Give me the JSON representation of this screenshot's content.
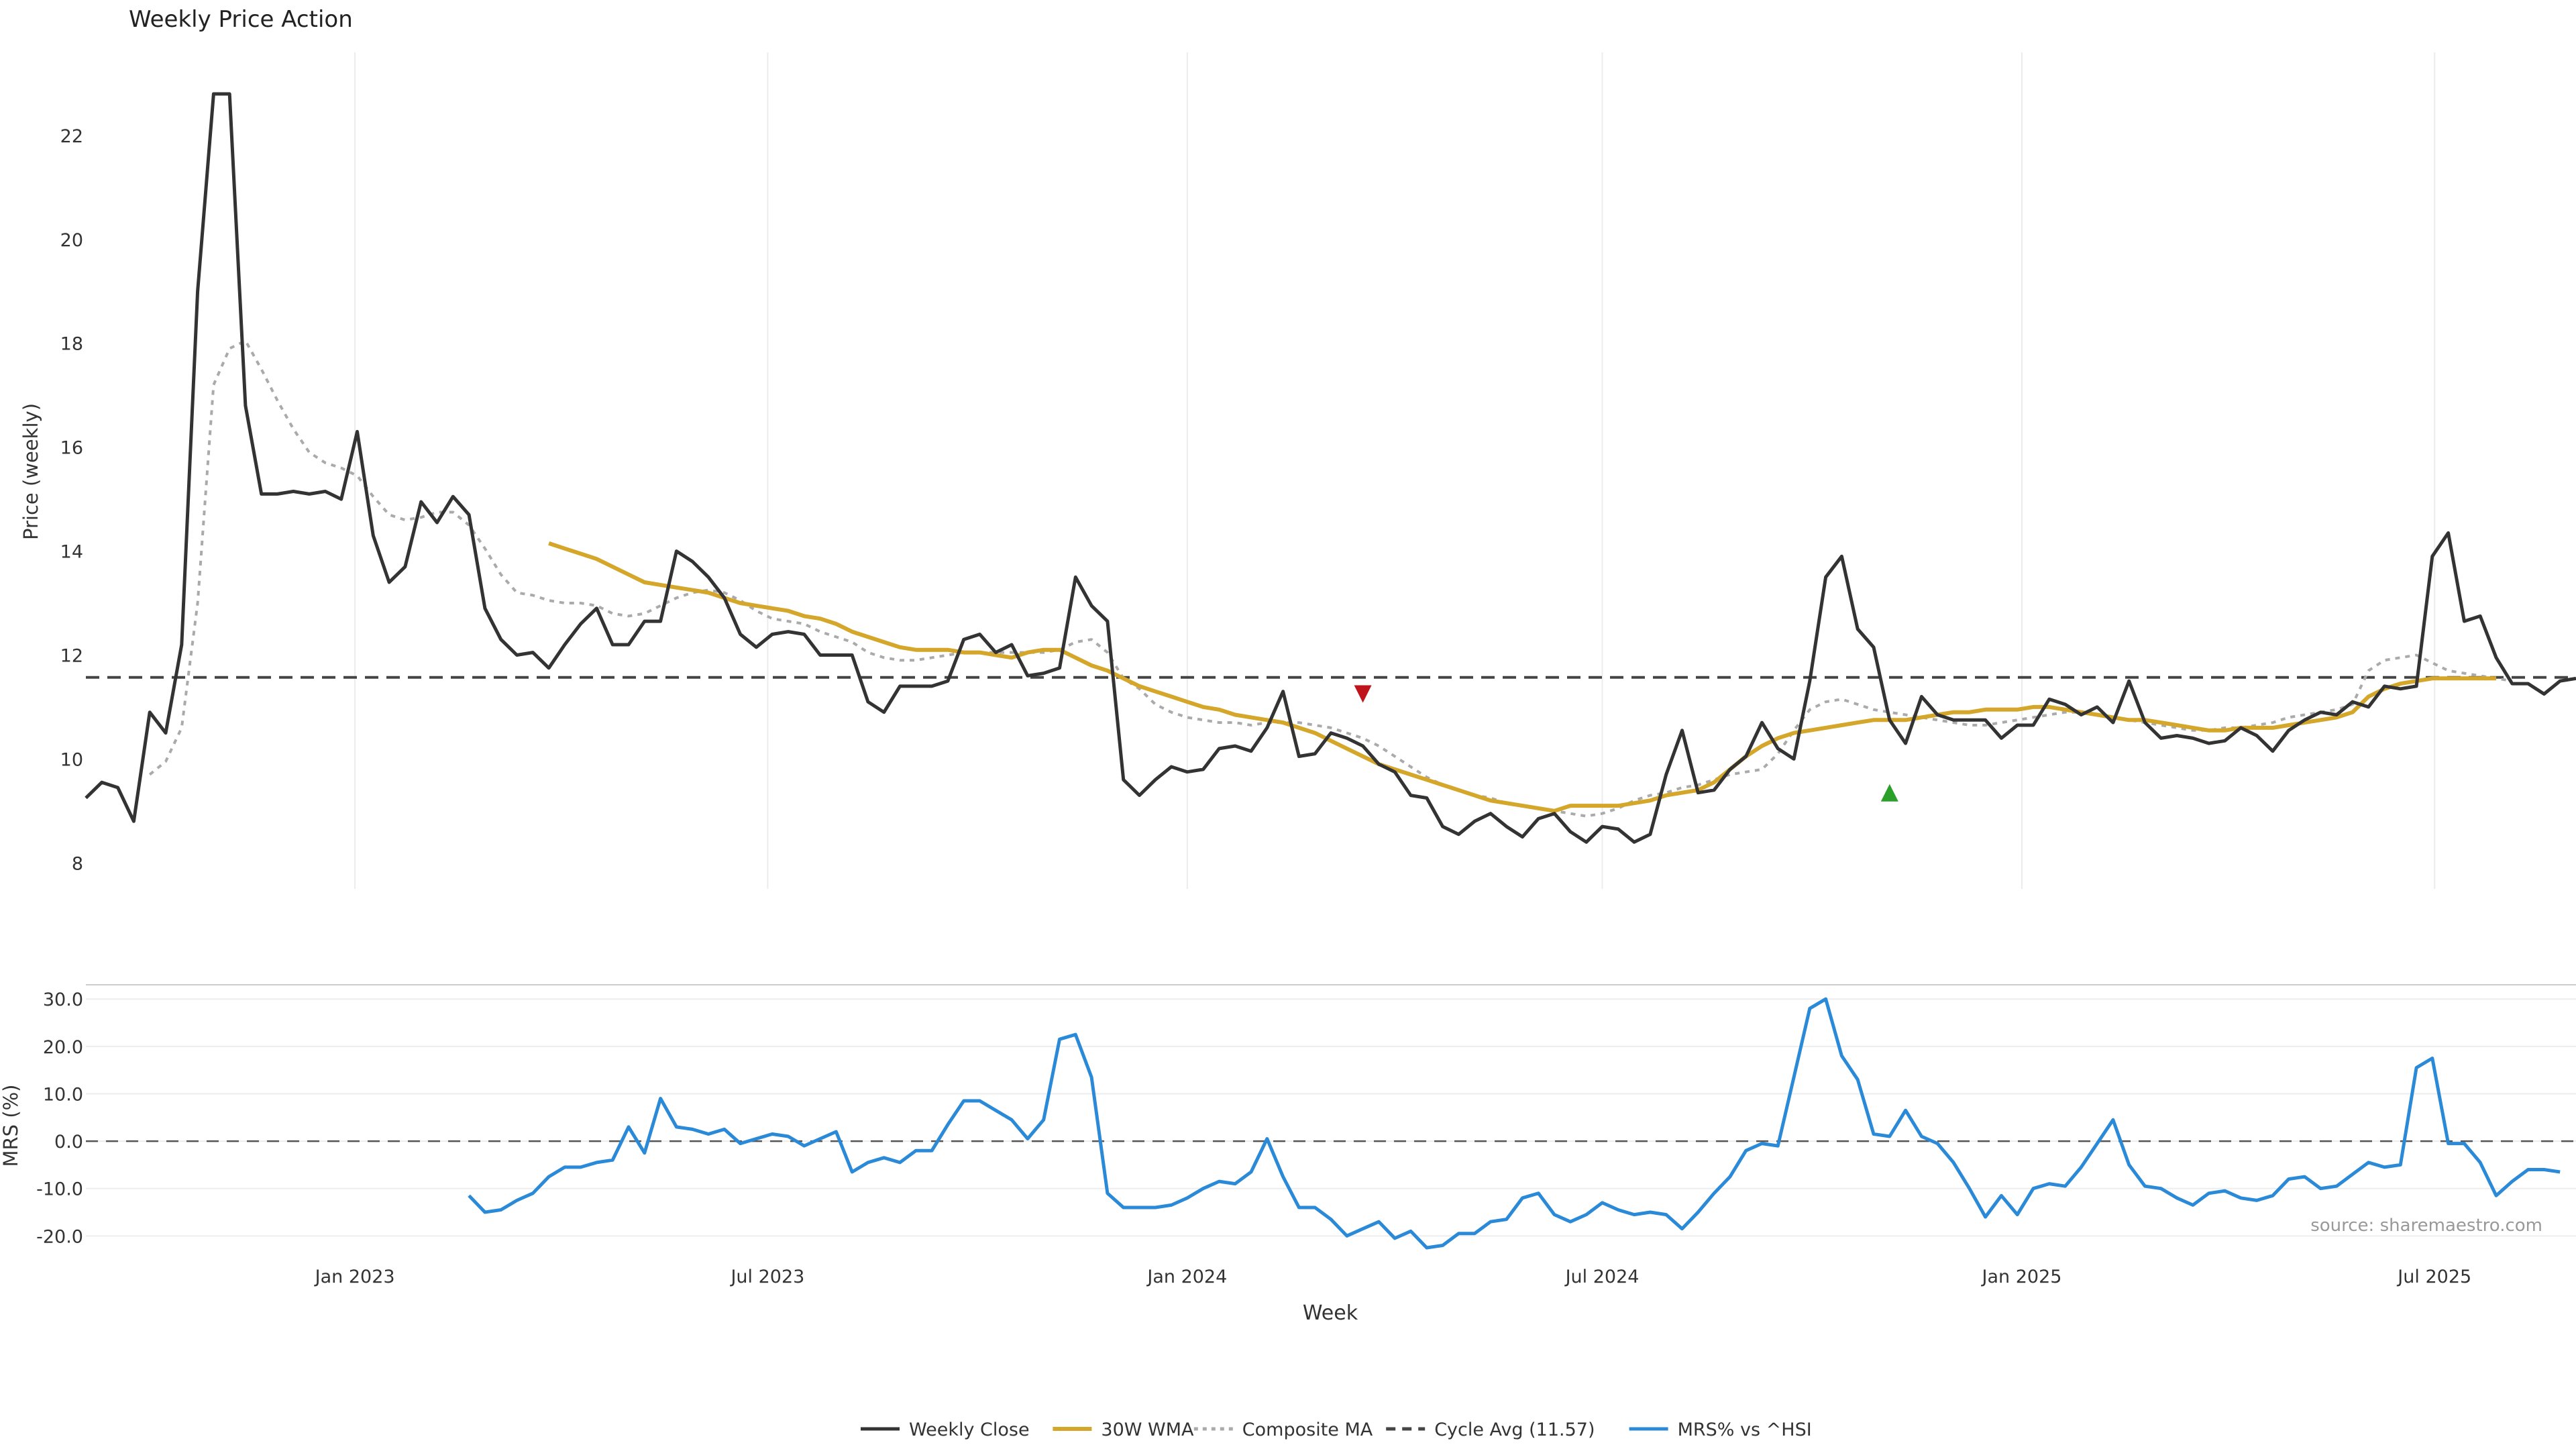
{
  "chart_data": [
    {
      "type": "line",
      "title": "Weekly Price Action",
      "ylabel": "Price (weekly)",
      "ylim": [
        7.5,
        23.6
      ],
      "yticks": [
        8,
        10,
        12,
        14,
        16,
        18,
        20,
        22
      ],
      "grid": "x",
      "x_start": "2022-09-05",
      "x_step_days": 7,
      "series": [
        {
          "name": "Weekly Close",
          "color": "#333333",
          "style": "solid",
          "values": [
            9.25,
            9.55,
            9.45,
            8.8,
            10.9,
            10.5,
            12.2,
            19.0,
            22.8,
            22.8,
            16.8,
            15.1,
            15.1,
            15.15,
            15.1,
            15.15,
            15.0,
            16.3,
            14.3,
            13.4,
            13.7,
            14.95,
            14.55,
            15.05,
            14.7,
            12.9,
            12.3,
            12.0,
            12.05,
            11.75,
            12.2,
            12.6,
            12.9,
            12.2,
            12.2,
            12.65,
            12.65,
            14.0,
            13.8,
            13.5,
            13.1,
            12.4,
            12.15,
            12.4,
            12.45,
            12.4,
            12.0,
            12.0,
            12.0,
            11.1,
            10.9,
            11.4,
            11.4,
            11.4,
            11.5,
            12.3,
            12.4,
            12.05,
            12.2,
            11.6,
            11.65,
            11.75,
            13.5,
            12.95,
            12.65,
            9.6,
            9.3,
            9.6,
            9.85,
            9.75,
            9.8,
            10.2,
            10.25,
            10.15,
            10.6,
            11.3,
            10.05,
            10.1,
            10.5,
            10.4,
            10.25,
            9.9,
            9.75,
            9.3,
            9.25,
            8.7,
            8.55,
            8.8,
            8.95,
            8.7,
            8.5,
            8.85,
            8.95,
            8.6,
            8.4,
            8.7,
            8.65,
            8.4,
            8.55,
            9.7,
            10.55,
            9.35,
            9.4,
            9.8,
            10.05,
            10.7,
            10.2,
            10.0,
            11.5,
            13.5,
            13.9,
            12.5,
            12.15,
            10.75,
            10.3,
            11.2,
            10.85,
            10.75,
            10.75,
            10.75,
            10.4,
            10.65,
            10.65,
            11.15,
            11.05,
            10.85,
            11.0,
            10.7,
            11.5,
            10.7,
            10.4,
            10.45,
            10.4,
            10.3,
            10.35,
            10.6,
            10.45,
            10.15,
            10.55,
            10.75,
            10.9,
            10.85,
            11.1,
            11.0,
            11.4,
            11.35,
            11.4,
            13.9,
            14.35,
            12.65,
            12.75,
            11.95,
            11.45,
            11.45,
            11.25,
            11.5,
            11.55
          ]
        },
        {
          "name": "30W WMA",
          "color": "#d4a62a",
          "style": "solid",
          "values": [
            null,
            null,
            null,
            null,
            null,
            null,
            null,
            null,
            null,
            null,
            null,
            null,
            null,
            null,
            null,
            null,
            null,
            null,
            null,
            null,
            null,
            null,
            null,
            null,
            null,
            null,
            null,
            null,
            null,
            14.15,
            14.05,
            13.95,
            13.85,
            13.7,
            13.55,
            13.4,
            13.35,
            13.3,
            13.25,
            13.2,
            13.1,
            13.0,
            12.95,
            12.9,
            12.85,
            12.75,
            12.7,
            12.6,
            12.45,
            12.35,
            12.25,
            12.15,
            12.1,
            12.1,
            12.1,
            12.05,
            12.05,
            12.0,
            11.95,
            12.05,
            12.1,
            12.1,
            11.95,
            11.8,
            11.7,
            11.55,
            11.4,
            11.3,
            11.2,
            11.1,
            11.0,
            10.95,
            10.85,
            10.8,
            10.75,
            10.7,
            10.6,
            10.5,
            10.35,
            10.2,
            10.05,
            9.9,
            9.8,
            9.7,
            9.6,
            9.5,
            9.4,
            9.3,
            9.2,
            9.15,
            9.1,
            9.05,
            9.0,
            9.1,
            9.1,
            9.1,
            9.1,
            9.15,
            9.2,
            9.3,
            9.35,
            9.4,
            9.55,
            9.8,
            10.05,
            10.25,
            10.4,
            10.5,
            10.55,
            10.6,
            10.65,
            10.7,
            10.75,
            10.75,
            10.75,
            10.8,
            10.85,
            10.9,
            10.9,
            10.95,
            10.95,
            10.95,
            11.0,
            11.0,
            10.95,
            10.9,
            10.85,
            10.8,
            10.75,
            10.75,
            10.7,
            10.65,
            10.6,
            10.55,
            10.55,
            10.6,
            10.6,
            10.6,
            10.65,
            10.7,
            10.75,
            10.8,
            10.9,
            11.2,
            11.35,
            11.45,
            11.5,
            11.55,
            11.55,
            11.55,
            11.55,
            11.55
          ]
        },
        {
          "name": "Composite MA",
          "color": "#aaaaaa",
          "style": "dotted",
          "values": [
            null,
            null,
            null,
            null,
            9.7,
            9.95,
            10.6,
            13.0,
            17.2,
            17.9,
            18.05,
            17.5,
            16.9,
            16.35,
            15.9,
            15.7,
            15.6,
            15.45,
            15.05,
            14.7,
            14.6,
            14.65,
            14.75,
            14.75,
            14.5,
            14.05,
            13.55,
            13.2,
            13.15,
            13.05,
            13.0,
            13.0,
            12.95,
            12.8,
            12.75,
            12.8,
            12.95,
            13.1,
            13.2,
            13.25,
            13.2,
            13.05,
            12.85,
            12.7,
            12.65,
            12.6,
            12.45,
            12.35,
            12.25,
            12.05,
            11.95,
            11.9,
            11.9,
            11.95,
            12.0,
            12.05,
            12.05,
            12.05,
            12.05,
            12.05,
            12.05,
            12.1,
            12.25,
            12.3,
            12.05,
            11.55,
            11.35,
            11.05,
            10.9,
            10.8,
            10.75,
            10.7,
            10.7,
            10.65,
            10.7,
            10.7,
            10.7,
            10.65,
            10.6,
            10.5,
            10.4,
            10.25,
            10.05,
            9.85,
            9.65,
            9.5,
            9.4,
            9.3,
            9.25,
            9.15,
            9.1,
            9.05,
            9.0,
            8.95,
            8.9,
            8.95,
            9.05,
            9.2,
            9.3,
            9.35,
            9.45,
            9.5,
            9.6,
            9.7,
            9.75,
            9.8,
            10.1,
            10.55,
            10.95,
            11.1,
            11.15,
            11.05,
            10.95,
            10.9,
            10.85,
            10.8,
            10.75,
            10.7,
            10.65,
            10.65,
            10.7,
            10.75,
            10.8,
            10.85,
            10.9,
            10.9,
            10.85,
            10.8,
            10.75,
            10.7,
            10.65,
            10.6,
            10.55,
            10.55,
            10.6,
            10.6,
            10.65,
            10.7,
            10.8,
            10.85,
            10.9,
            10.95,
            11.05,
            11.7,
            11.9,
            11.95,
            12.0,
            11.85,
            11.7,
            11.65,
            11.6,
            11.55,
            11.5
          ]
        }
      ],
      "reference_line": {
        "name": "Cycle Avg (11.57)",
        "value": 11.57,
        "color": "#444444",
        "style": "dashed"
      },
      "markers": [
        {
          "kind": "sell",
          "x": "2024-03-18",
          "y": 11.25,
          "color": "#c0141c"
        },
        {
          "kind": "buy",
          "x": "2024-11-04",
          "y": 9.35,
          "color": "#2aa02a"
        }
      ]
    },
    {
      "type": "line",
      "ylabel": "MRS (%)",
      "xlabel": "Week",
      "ylim": [
        -22.5,
        33
      ],
      "yticks": [
        "30.0",
        "20.0",
        "10.0",
        "0.0",
        "-10.0",
        "-20.0"
      ],
      "xticks": [
        {
          "date": "2023-01-01",
          "label": "Jan 2023"
        },
        {
          "date": "2023-07-01",
          "label": "Jul 2023"
        },
        {
          "date": "2024-01-01",
          "label": "Jan 2024"
        },
        {
          "date": "2024-07-01",
          "label": "Jul 2024"
        },
        {
          "date": "2025-01-01",
          "label": "Jan 2025"
        },
        {
          "date": "2025-07-01",
          "label": "Jul 2025"
        }
      ],
      "reference_value": 0,
      "annotation": "source: sharemaestro.com",
      "series": [
        {
          "name": "MRS% vs ^HSI",
          "color": "#2a8ad8",
          "style": "solid",
          "values": [
            null,
            null,
            null,
            null,
            null,
            null,
            null,
            null,
            null,
            null,
            null,
            null,
            null,
            null,
            null,
            null,
            null,
            null,
            null,
            null,
            null,
            null,
            null,
            null,
            -11.5,
            -15.0,
            -14.5,
            -12.5,
            -11.0,
            -7.5,
            -5.5,
            -5.5,
            -4.5,
            -4.0,
            3.0,
            -2.5,
            9.0,
            3.0,
            2.5,
            1.5,
            2.5,
            -0.5,
            0.5,
            1.5,
            1.0,
            -1.0,
            0.5,
            2.0,
            -6.5,
            -4.5,
            -3.5,
            -4.5,
            -2.0,
            -2.0,
            3.5,
            8.5,
            8.5,
            6.5,
            4.5,
            0.5,
            4.5,
            21.5,
            22.5,
            13.5,
            -11.0,
            -14.0,
            -14.0,
            -14.0,
            -13.5,
            -12.0,
            -10.0,
            -8.5,
            -9.0,
            -6.5,
            0.5,
            -7.5,
            -14.0,
            -14.0,
            -16.5,
            -20.0,
            -18.5,
            -17.0,
            -20.5,
            -19.0,
            -22.5,
            -22.0,
            -19.5,
            -19.5,
            -17.0,
            -16.5,
            -12.0,
            -11.0,
            -15.5,
            -17.0,
            -15.5,
            -13.0,
            -14.5,
            -15.5,
            -15.0,
            -15.5,
            -18.5,
            -15.0,
            -11.0,
            -7.5,
            -2.0,
            -0.5,
            -1.0,
            13.5,
            28.0,
            30.0,
            18.0,
            13.0,
            1.5,
            1.0,
            6.5,
            1.0,
            -0.5,
            -4.5,
            -10.0,
            -16.0,
            -11.5,
            -15.5,
            -10.0,
            -9.0,
            -9.5,
            -5.5,
            -0.5,
            4.5,
            -5.0,
            -9.5,
            -10.0,
            -12.0,
            -13.5,
            -11.0,
            -10.5,
            -12.0,
            -12.5,
            -11.5,
            -8.0,
            -7.5,
            -10.0,
            -9.5,
            -7.0,
            -4.5,
            -5.5,
            -5.0,
            15.5,
            17.5,
            -0.5,
            -0.5,
            -4.5,
            -11.5,
            -8.5,
            -6.0,
            -6.0,
            -6.5
          ]
        }
      ]
    }
  ],
  "legend": {
    "placement": "bottom-center",
    "items": [
      {
        "label": "Weekly Close",
        "color": "#333333",
        "style": "solid"
      },
      {
        "label": "30W WMA",
        "color": "#d4a62a",
        "style": "solid"
      },
      {
        "label": "Composite MA",
        "color": "#aaaaaa",
        "style": "dotted"
      },
      {
        "label": "Cycle Avg (11.57)",
        "color": "#444444",
        "style": "dashed"
      },
      {
        "label": "MRS% vs ^HSI",
        "color": "#2a8ad8",
        "style": "solid"
      }
    ]
  }
}
